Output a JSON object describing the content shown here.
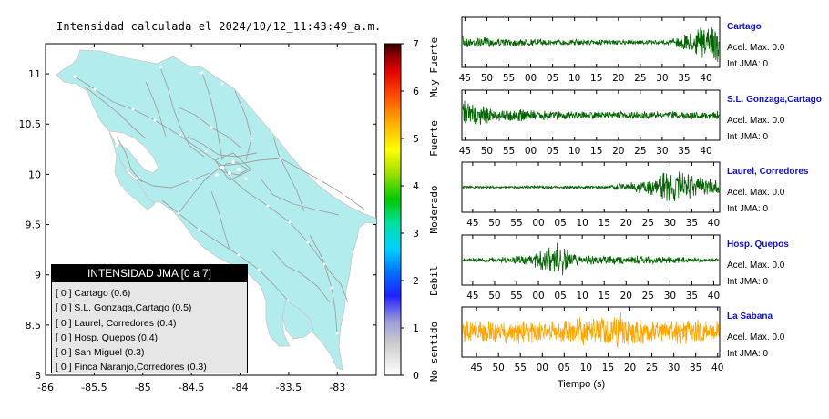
{
  "chart_data": [
    {
      "type": "map",
      "title": "Intensidad calculada el 2024/10/12_11:43:49_a.m.",
      "xlim": [
        -86,
        -82.6
      ],
      "ylim": [
        8,
        11.3
      ],
      "x_ticks": [
        "-86",
        "-85.5",
        "-85",
        "-84.5",
        "-84",
        "-83.5",
        "-83"
      ],
      "y_ticks": [
        "8",
        "8.5",
        "9",
        "9.5",
        "10",
        "10.5",
        "11"
      ],
      "colorbar": {
        "range": [
          0,
          7
        ],
        "ticks": [
          "0",
          "1",
          "2",
          "3",
          "4",
          "5",
          "6",
          "7"
        ],
        "labels": [
          "No sentido",
          "Debil",
          "Moderado",
          "Fuerte",
          "Muy Fuerte"
        ]
      },
      "legend": {
        "title": "INTENSIDAD JMA [0 a 7]",
        "items": [
          {
            "jma": "[ 0 ]",
            "label": "Cartago (0.6)"
          },
          {
            "jma": "[ 0 ]",
            "label": "S.L. Gonzaga,Cartago (0.5)"
          },
          {
            "jma": "[ 0 ]",
            "label": "Laurel, Corredores (0.4)"
          },
          {
            "jma": "[ 0 ]",
            "label": "Hosp. Quepos (0.4)"
          },
          {
            "jma": "[ 0 ]",
            "label": "San Miguel (0.3)"
          },
          {
            "jma": "[ 0 ]",
            "label": "Finca Naranjo,Corredores (0.3)"
          }
        ]
      },
      "colors": {
        "land": "#b3ecec",
        "roads": "#a0a0a0"
      }
    },
    {
      "type": "line",
      "xlabel": "Tiempo (s)",
      "series": [
        {
          "name": "Cartago",
          "accel": "Acel. Max. 0.0",
          "jma": "Int JMA: 0",
          "color": "#006400",
          "ticks": [
            "45",
            "50",
            "55",
            "00",
            "05",
            "10",
            "15",
            "20",
            "25",
            "30",
            "35",
            "40"
          ],
          "events": [
            [
              0.0,
              0.28
            ],
            [
              0.1,
              0.22
            ],
            [
              0.5,
              0.14
            ],
            [
              0.8,
              0.1
            ],
            [
              0.86,
              0.45
            ],
            [
              0.95,
              0.75
            ],
            [
              1.0,
              0.95
            ]
          ]
        },
        {
          "name": "S.L. Gonzaga,Cartago",
          "accel": "Acel. Max. 0.0",
          "jma": "Int JMA: 0",
          "color": "#006400",
          "ticks": [
            "45",
            "50",
            "55",
            "00",
            "05",
            "10",
            "15",
            "20",
            "25",
            "30",
            "35",
            "40"
          ],
          "events": [
            [
              0.0,
              0.85
            ],
            [
              0.05,
              0.55
            ],
            [
              0.12,
              0.35
            ],
            [
              0.3,
              0.25
            ],
            [
              0.6,
              0.18
            ],
            [
              0.9,
              0.2
            ],
            [
              1.0,
              0.22
            ]
          ]
        },
        {
          "name": "Laurel, Corredores",
          "accel": "Acel. Max. 0.0",
          "jma": "Int JMA: 0",
          "color": "#006400",
          "ticks": [
            "45",
            "50",
            "55",
            "00",
            "05",
            "10",
            "15",
            "20",
            "25",
            "30",
            "35",
            "40"
          ],
          "events": [
            [
              0.0,
              0.06
            ],
            [
              0.55,
              0.08
            ],
            [
              0.7,
              0.3
            ],
            [
              0.83,
              0.95
            ],
            [
              0.9,
              0.55
            ],
            [
              1.0,
              0.35
            ]
          ]
        },
        {
          "name": "Hosp. Quepos",
          "accel": "Acel. Max. 0.0",
          "jma": "Int JMA: 0",
          "color": "#006400",
          "ticks": [
            "45",
            "50",
            "55",
            "00",
            "05",
            "10",
            "15",
            "20",
            "25",
            "30",
            "35",
            "40"
          ],
          "events": [
            [
              0.0,
              0.06
            ],
            [
              0.1,
              0.12
            ],
            [
              0.25,
              0.22
            ],
            [
              0.38,
              0.95
            ],
            [
              0.45,
              0.25
            ],
            [
              0.75,
              0.2
            ],
            [
              1.0,
              0.1
            ]
          ]
        },
        {
          "name": "La Sabana",
          "accel": "Acel. Max. 0.0",
          "jma": "Int JMA: 0",
          "color": "#ffa500",
          "ticks": [
            "45",
            "50",
            "55",
            "00",
            "05",
            "10",
            "15",
            "20",
            "25",
            "30",
            "35",
            "40"
          ],
          "events": [
            [
              0.0,
              0.55
            ],
            [
              0.4,
              0.6
            ],
            [
              0.62,
              0.95
            ],
            [
              0.7,
              0.6
            ],
            [
              1.0,
              0.55
            ]
          ]
        }
      ]
    }
  ]
}
